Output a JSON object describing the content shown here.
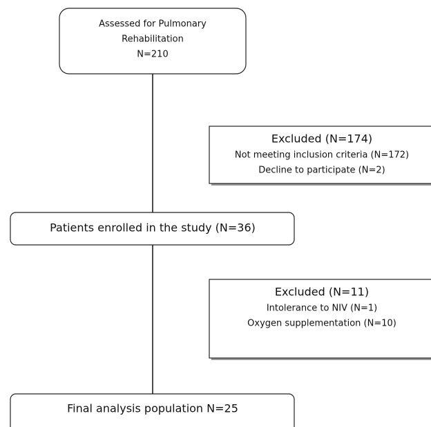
{
  "nodes": [
    {
      "lines": [
        "Assessed for Pulmonary",
        "Rehabilitation",
        "N=210"
      ]
    },
    {
      "lines": [
        "Excluded (N=174)",
        "Not meeting inclusion criteria (N=172)",
        "Decline to participate (N=2)"
      ]
    },
    {
      "lines": [
        "Patients enrolled in the study (N=36)"
      ]
    },
    {
      "lines": [
        "Excluded (N=11)",
        "Intolerance to NIV (N=1)",
        "Oxygen supplementation (N=10)"
      ]
    },
    {
      "lines": [
        "Final analysis population N=25"
      ]
    }
  ]
}
